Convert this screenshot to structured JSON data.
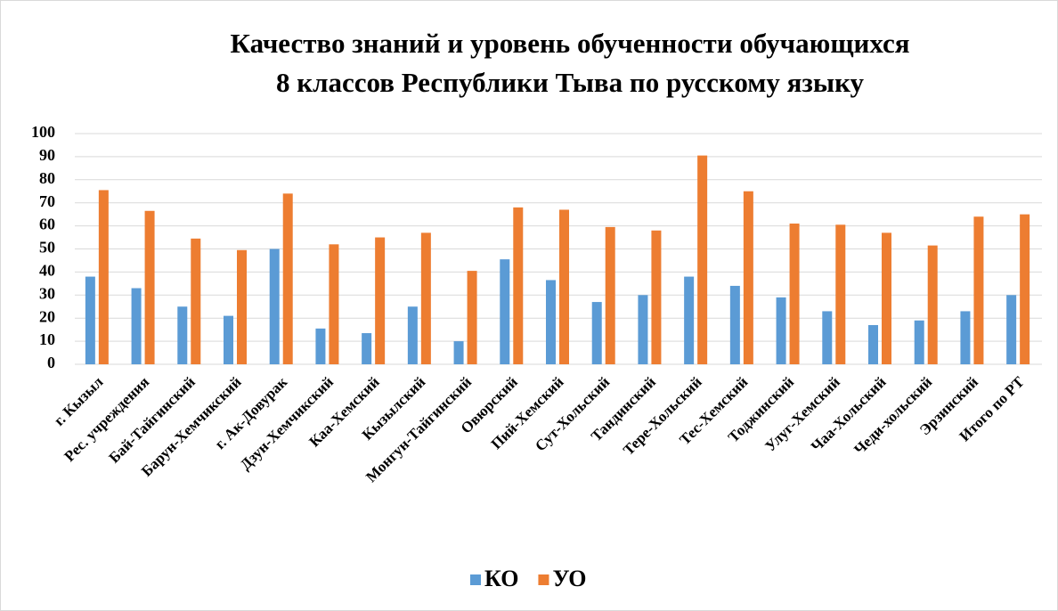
{
  "chart_data": {
    "type": "bar",
    "title": [
      "Качество знаний и уровень обученности обучающихся",
      "8 классов Республики Тыва по русскому языку"
    ],
    "categories": [
      "г. Кызыл",
      "Рес. учреждения",
      "Бай-Тайгинский",
      "Барун-Хемчикский",
      "г. Ак-Довурак",
      "Дзун-Хемчикский",
      "Каа-Хемский",
      "Кызылский",
      "Монгун-Тайгинский",
      "Овюрский",
      "Пий-Хемский",
      "Сут-Хольский",
      "Тандинский",
      "Тере-Хольский",
      "Тес-Хемский",
      "Тоджинский",
      "Улуг-Хемский",
      "Чаа-Хольский",
      "Чеди-хольский",
      "Эрзинский",
      "Итого по РТ"
    ],
    "series": [
      {
        "name": "КО",
        "color": "#5b9bd5",
        "values": [
          38,
          33,
          25,
          21,
          50,
          15.5,
          13.5,
          25,
          10,
          45.5,
          36.5,
          27,
          30,
          38,
          34,
          29,
          23,
          17,
          19,
          23,
          30
        ]
      },
      {
        "name": "УО",
        "color": "#ed7d31",
        "values": [
          75.5,
          66.5,
          54.5,
          49.5,
          74,
          52,
          55,
          57,
          40.5,
          68,
          67,
          59.5,
          58,
          90.5,
          75,
          61,
          60.5,
          57,
          51.5,
          64,
          65
        ]
      }
    ],
    "ylim": [
      0,
      100
    ],
    "yticks": [
      0,
      10,
      20,
      30,
      40,
      50,
      60,
      70,
      80,
      90,
      100
    ],
    "grid": true,
    "legend": "bottom"
  }
}
